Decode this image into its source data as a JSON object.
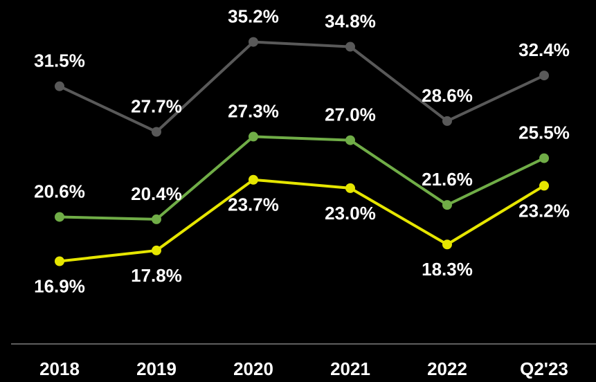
{
  "chart_data": {
    "type": "line",
    "categories": [
      "2018",
      "2019",
      "2020",
      "2021",
      "2022",
      "Q2'23"
    ],
    "series": [
      {
        "color": "#595959",
        "label_position": "above",
        "values": [
          31.5,
          27.7,
          35.2,
          34.8,
          28.6,
          32.4
        ],
        "value_labels": [
          "31.5%",
          "27.7%",
          "35.2%",
          "34.8%",
          "28.6%",
          "32.4%"
        ]
      },
      {
        "color": "#70ad47",
        "label_position": "above",
        "values": [
          20.6,
          20.4,
          27.3,
          27.0,
          21.6,
          25.5
        ],
        "value_labels": [
          "20.6%",
          "20.4%",
          "27.3%",
          "27.0%",
          "21.6%",
          "25.5%"
        ]
      },
      {
        "color": "#e6e600",
        "label_position": "below",
        "values": [
          16.9,
          17.8,
          23.7,
          23.0,
          18.3,
          23.2
        ],
        "value_labels": [
          "16.9%",
          "17.8%",
          "23.7%",
          "23.0%",
          "18.3%",
          "23.2%"
        ]
      }
    ],
    "ylim": [
      10,
      38.7
    ],
    "grid": false
  }
}
